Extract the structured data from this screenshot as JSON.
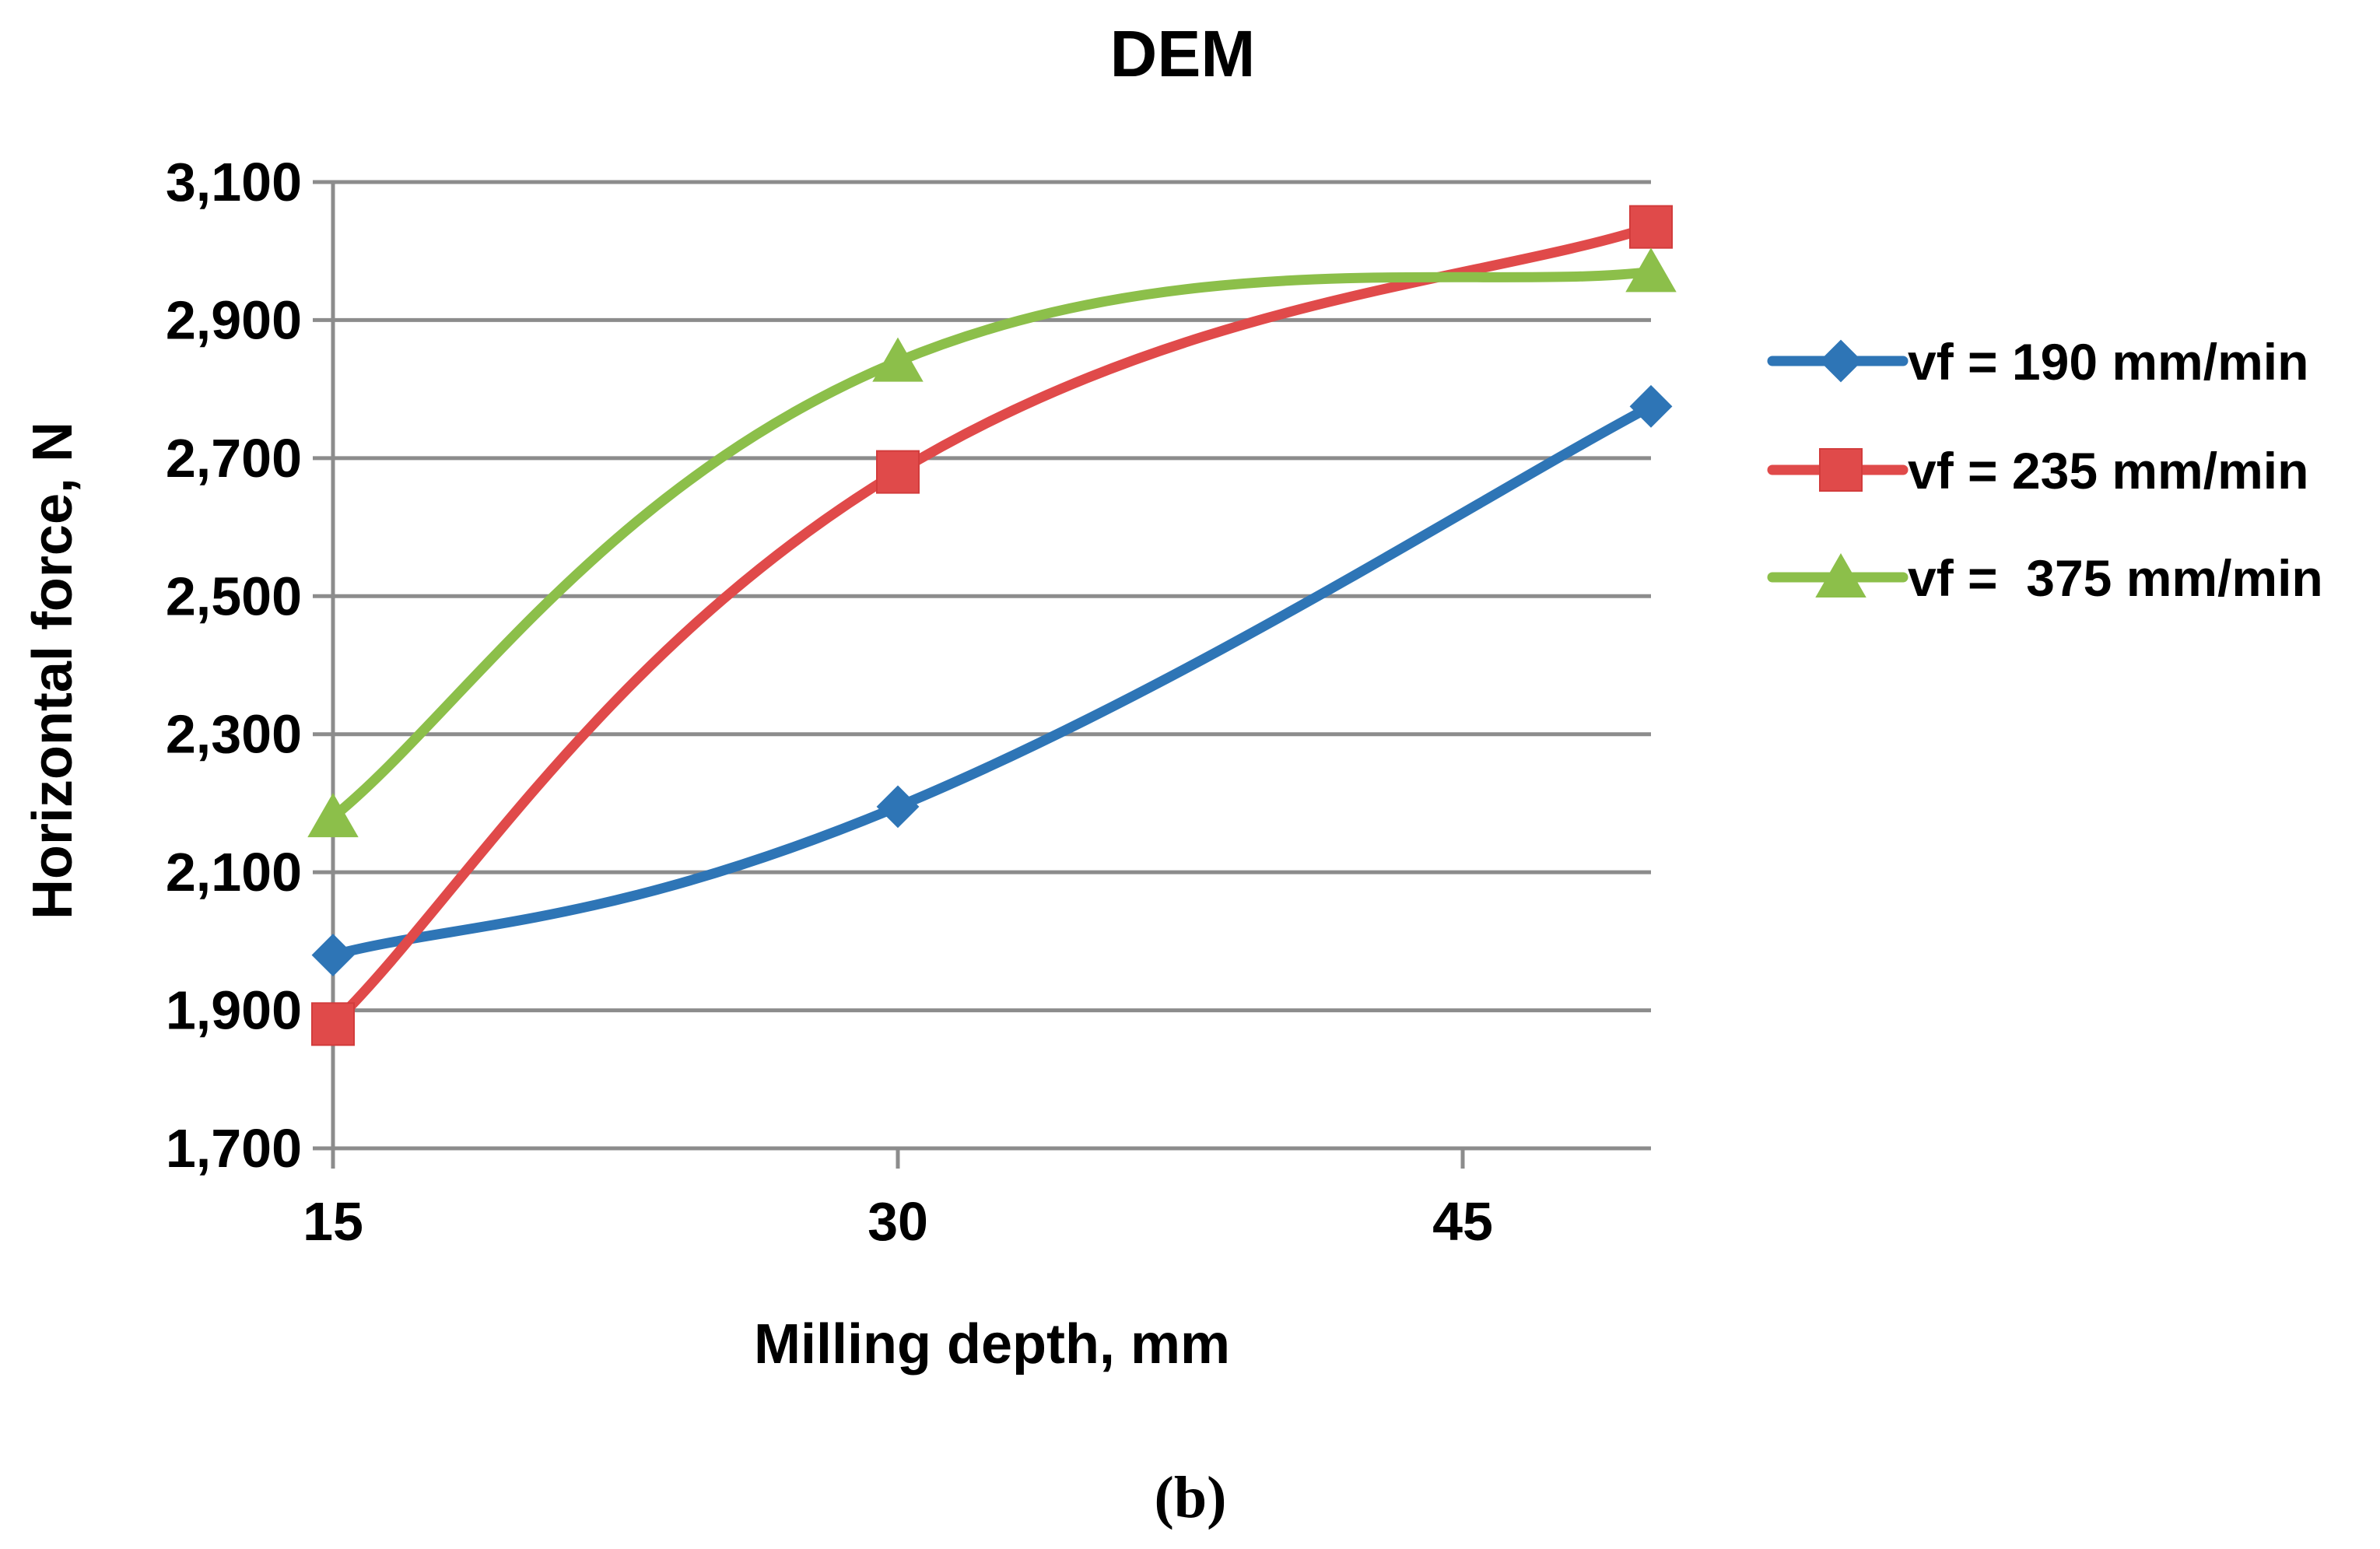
{
  "chart_data": {
    "type": "line",
    "title": "DEM",
    "xlabel": "Milling depth, mm",
    "ylabel": "Horizontal force, N",
    "caption_label": "b",
    "x_ticks": [
      "15",
      "30",
      "45"
    ],
    "y_ticks": [
      "1,700",
      "1,900",
      "2,100",
      "2,300",
      "2,500",
      "2,700",
      "2,900",
      "3,100"
    ],
    "xlim": [
      15,
      50
    ],
    "ylim": [
      1700,
      3100
    ],
    "x": [
      15,
      30,
      50
    ],
    "grid": "horizontal",
    "legend_position": "right",
    "series": [
      {
        "name": "vf = 190 mm/min",
        "color": "#2e75b6",
        "marker": "diamond",
        "values": [
          1980,
          2195,
          2775
        ]
      },
      {
        "name": "vf = 235 mm/min",
        "color": "#e04a4a",
        "marker": "square",
        "values": [
          1880,
          2680,
          3035
        ]
      },
      {
        "name": "vf =  375 mm/min",
        "color": "#8cbf4a",
        "marker": "triangle",
        "values": [
          2180,
          2840,
          2970
        ]
      }
    ]
  }
}
